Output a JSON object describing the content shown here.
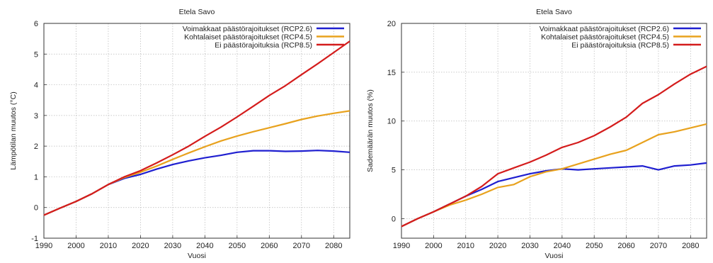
{
  "chart_data": [
    {
      "type": "line",
      "title": "Etela Savo",
      "xlabel": "Vuosi",
      "ylabel": "Lämpötilan muutos (°C)",
      "xlim": [
        1990,
        2085
      ],
      "ylim": [
        -1,
        6
      ],
      "xticks": [
        "1990",
        "2000",
        "2010",
        "2020",
        "2030",
        "2040",
        "2050",
        "2060",
        "2070",
        "2080"
      ],
      "yticks": [
        "-1",
        "0",
        "1",
        "2",
        "3",
        "4",
        "5",
        "6"
      ],
      "grid": true,
      "legend_position": "top-right",
      "series": [
        {
          "name": "Voimakkaat päästörajoitukset (RCP2.6)",
          "color": "#1f1fd0",
          "x": [
            1990,
            1995,
            2000,
            2005,
            2010,
            2015,
            2020,
            2025,
            2030,
            2035,
            2040,
            2045,
            2050,
            2055,
            2060,
            2065,
            2070,
            2075,
            2080,
            2085
          ],
          "y": [
            -0.25,
            -0.02,
            0.2,
            0.45,
            0.75,
            0.95,
            1.08,
            1.25,
            1.4,
            1.52,
            1.62,
            1.7,
            1.8,
            1.85,
            1.85,
            1.83,
            1.84,
            1.86,
            1.84,
            1.8
          ]
        },
        {
          "name": "Kohtalaiset päästörajoitukset (RCP4.5)",
          "color": "#e8a21e",
          "x": [
            1990,
            1995,
            2000,
            2005,
            2010,
            2015,
            2020,
            2025,
            2030,
            2035,
            2040,
            2045,
            2050,
            2055,
            2060,
            2065,
            2070,
            2075,
            2080,
            2085
          ],
          "y": [
            -0.25,
            -0.02,
            0.2,
            0.45,
            0.75,
            0.98,
            1.15,
            1.35,
            1.57,
            1.78,
            1.98,
            2.17,
            2.33,
            2.47,
            2.6,
            2.73,
            2.87,
            2.98,
            3.07,
            3.15
          ]
        },
        {
          "name": "Ei päästörajoituksia (RCP8.5)",
          "color": "#d41c1c",
          "x": [
            1990,
            1995,
            2000,
            2005,
            2010,
            2015,
            2020,
            2025,
            2030,
            2035,
            2040,
            2045,
            2050,
            2055,
            2060,
            2065,
            2070,
            2075,
            2080,
            2085
          ],
          "y": [
            -0.25,
            -0.02,
            0.2,
            0.45,
            0.75,
            1.0,
            1.2,
            1.45,
            1.72,
            2.0,
            2.32,
            2.62,
            2.95,
            3.3,
            3.65,
            3.97,
            4.33,
            4.68,
            5.05,
            5.42
          ]
        }
      ]
    },
    {
      "type": "line",
      "title": "Etela Savo",
      "xlabel": "Vuosi",
      "ylabel": "Sademäärän muutos (%)",
      "xlim": [
        1990,
        2085
      ],
      "ylim": [
        -2,
        20
      ],
      "xticks": [
        "1990",
        "2000",
        "2010",
        "2020",
        "2030",
        "2040",
        "2050",
        "2060",
        "2070",
        "2080"
      ],
      "yticks": [
        "0",
        "5",
        "10",
        "15",
        "20"
      ],
      "grid": true,
      "legend_position": "top-right",
      "series": [
        {
          "name": "Voimakkaat päästörajoitukset (RCP2.6)",
          "color": "#1f1fd0",
          "x": [
            1990,
            1995,
            2000,
            2005,
            2010,
            2015,
            2020,
            2025,
            2030,
            2035,
            2040,
            2045,
            2050,
            2055,
            2060,
            2065,
            2070,
            2075,
            2080,
            2085
          ],
          "y": [
            -0.8,
            0.0,
            0.7,
            1.5,
            2.3,
            3.0,
            3.8,
            4.2,
            4.6,
            4.9,
            5.1,
            5.0,
            5.1,
            5.2,
            5.3,
            5.4,
            5.0,
            5.4,
            5.5,
            5.7
          ]
        },
        {
          "name": "Kohtalaiset päästörajoitukset (RCP4.5)",
          "color": "#e8a21e",
          "x": [
            1990,
            1995,
            2000,
            2005,
            2010,
            2015,
            2020,
            2025,
            2030,
            2035,
            2040,
            2045,
            2050,
            2055,
            2060,
            2065,
            2070,
            2075,
            2080,
            2085
          ],
          "y": [
            -0.8,
            0.0,
            0.7,
            1.4,
            1.9,
            2.5,
            3.2,
            3.5,
            4.3,
            4.8,
            5.1,
            5.6,
            6.1,
            6.6,
            7.0,
            7.8,
            8.6,
            8.9,
            9.3,
            9.7
          ]
        },
        {
          "name": "Ei päästörajoituksia (RCP8.5)",
          "color": "#d41c1c",
          "x": [
            1990,
            1995,
            2000,
            2005,
            2010,
            2015,
            2020,
            2025,
            2030,
            2035,
            2040,
            2045,
            2050,
            2055,
            2060,
            2065,
            2070,
            2075,
            2080,
            2085
          ],
          "y": [
            -0.8,
            0.0,
            0.7,
            1.5,
            2.3,
            3.3,
            4.6,
            5.2,
            5.8,
            6.5,
            7.3,
            7.8,
            8.5,
            9.4,
            10.4,
            11.8,
            12.7,
            13.8,
            14.8,
            15.6
          ]
        }
      ]
    }
  ]
}
